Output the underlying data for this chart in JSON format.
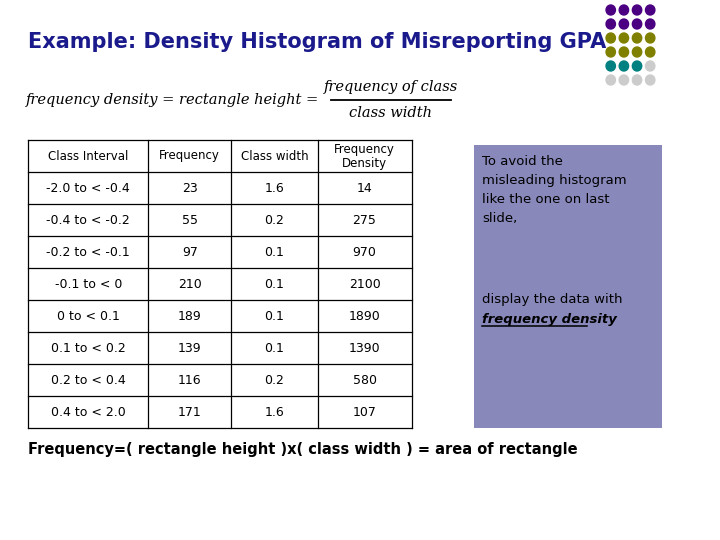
{
  "title": "Example: Density Histogram of Misreporting GPA",
  "title_color": "#1a1a8c",
  "bg_color": "#ffffff",
  "table_headers": [
    "Class Interval",
    "Frequency",
    "Class width",
    "Frequency\nDensity"
  ],
  "table_rows": [
    [
      "-2.0 to < -0.4",
      "23",
      "1.6",
      "14"
    ],
    [
      "-0.4 to < -0.2",
      "55",
      "0.2",
      "275"
    ],
    [
      "-0.2 to < -0.1",
      "97",
      "0.1",
      "970"
    ],
    [
      "-0.1 to < 0",
      "210",
      "0.1",
      "2100"
    ],
    [
      "0 to < 0.1",
      "189",
      "0.1",
      "1890"
    ],
    [
      "0.1 to < 0.2",
      "139",
      "0.1",
      "1390"
    ],
    [
      "0.2 to < 0.4",
      "116",
      "0.2",
      "580"
    ],
    [
      "0.4 to < 2.0",
      "171",
      "1.6",
      "107"
    ]
  ],
  "sidebar_bg": "#8888bb",
  "footer_text": "Frequency=( rectangle height )x( class width ) = area of rectangle",
  "dot_colors": [
    [
      "#4b0082",
      "#4b0082",
      "#4b0082",
      "#4b0082"
    ],
    [
      "#4b0082",
      "#4b0082",
      "#4b0082",
      "#4b0082"
    ],
    [
      "#808000",
      "#808000",
      "#808000",
      "#808000"
    ],
    [
      "#808000",
      "#808000",
      "#808000",
      "#808000"
    ],
    [
      "#008080",
      "#008080",
      "#008080",
      "#cccccc"
    ],
    [
      "#cccccc",
      "#cccccc",
      "#cccccc",
      "#cccccc"
    ]
  ]
}
